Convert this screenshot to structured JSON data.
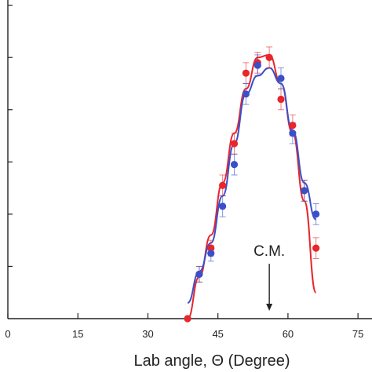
{
  "chart_data": {
    "type": "scatter",
    "xlabel": "Lab angle, Θ (Degree)",
    "ylabel": "",
    "xlim": [
      0,
      78
    ],
    "ylim": [
      0,
      1.22
    ],
    "x_ticks": [
      0,
      15,
      30,
      45,
      60,
      75
    ],
    "x_tick_labels": [
      "0",
      "15",
      "30",
      "45",
      "60",
      "75"
    ],
    "y_ticks": [
      0.2,
      0.4,
      0.6,
      0.8,
      1.0,
      1.2
    ],
    "grid": false,
    "annotations": [
      {
        "text": "C.M.",
        "x": 56,
        "arrow_from_y": 0.21,
        "arrow_to_y": 0.03
      }
    ],
    "series": [
      {
        "color": "#e8262b",
        "points": [
          {
            "x": 38.5,
            "y": 0.0,
            "err": 0.0
          },
          {
            "x": 41.0,
            "y": 0.17,
            "err": 0.03
          },
          {
            "x": 43.5,
            "y": 0.27,
            "err": 0.03
          },
          {
            "x": 46.0,
            "y": 0.51,
            "err": 0.04
          },
          {
            "x": 48.5,
            "y": 0.67,
            "err": 0.04
          },
          {
            "x": 51.0,
            "y": 0.94,
            "err": 0.04
          },
          {
            "x": 53.5,
            "y": 0.98,
            "err": 0.04
          },
          {
            "x": 56.0,
            "y": 1.0,
            "err": 0.04
          },
          {
            "x": 58.5,
            "y": 0.84,
            "err": 0.04
          },
          {
            "x": 61.0,
            "y": 0.74,
            "err": 0.04
          },
          {
            "x": 63.5,
            "y": 0.49,
            "err": 0.04
          },
          {
            "x": 66.0,
            "y": 0.27,
            "err": 0.04
          }
        ],
        "fit": [
          [
            38.5,
            0.0
          ],
          [
            41,
            0.16
          ],
          [
            43.5,
            0.32
          ],
          [
            46,
            0.52
          ],
          [
            48.5,
            0.71
          ],
          [
            51,
            0.88
          ],
          [
            53.5,
            1.0
          ],
          [
            56,
            1.01
          ],
          [
            58.5,
            0.9
          ],
          [
            61,
            0.71
          ],
          [
            63.5,
            0.45
          ],
          [
            66,
            0.1
          ]
        ]
      },
      {
        "color": "#3b4fc9",
        "points": [
          {
            "x": 41.0,
            "y": 0.17,
            "err": 0.03
          },
          {
            "x": 43.5,
            "y": 0.25,
            "err": 0.03
          },
          {
            "x": 46.0,
            "y": 0.43,
            "err": 0.04
          },
          {
            "x": 48.5,
            "y": 0.59,
            "err": 0.04
          },
          {
            "x": 51.0,
            "y": 0.86,
            "err": 0.04
          },
          {
            "x": 53.5,
            "y": 0.97,
            "err": 0.04
          },
          {
            "x": 58.5,
            "y": 0.92,
            "err": 0.04
          },
          {
            "x": 61.0,
            "y": 0.71,
            "err": 0.04
          },
          {
            "x": 63.5,
            "y": 0.49,
            "err": 0.04
          },
          {
            "x": 66.0,
            "y": 0.4,
            "err": 0.04
          }
        ],
        "fit": [
          [
            38.5,
            0.06
          ],
          [
            41,
            0.18
          ],
          [
            43.5,
            0.29
          ],
          [
            46,
            0.47
          ],
          [
            48.5,
            0.67
          ],
          [
            51,
            0.86
          ],
          [
            53.5,
            0.93
          ],
          [
            56,
            0.96
          ],
          [
            58.5,
            0.9
          ],
          [
            61,
            0.72
          ],
          [
            63.5,
            0.52
          ],
          [
            66,
            0.38
          ]
        ]
      }
    ]
  }
}
